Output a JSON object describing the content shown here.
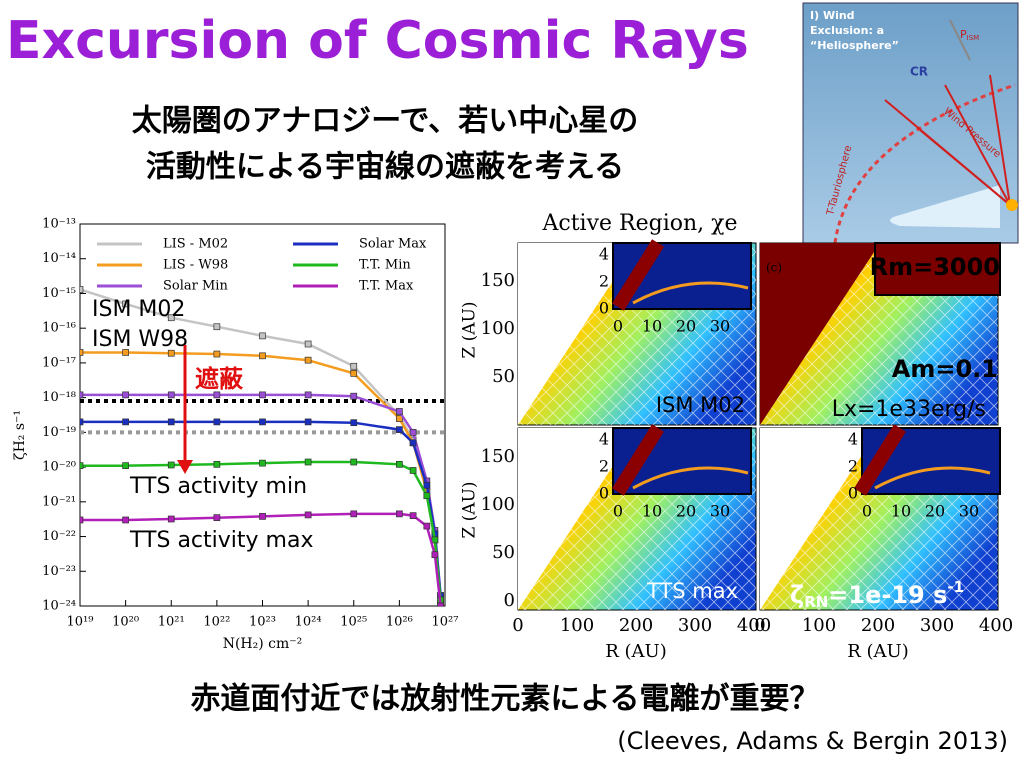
{
  "title": "Excursion of Cosmic Rays",
  "subtitle": [
    "太陽圏のアナロジーで、若い中心星の",
    "活動性による宇宙線の遮蔽を考える"
  ],
  "chart_data": {
    "type": "line",
    "xlabel": "N(H₂) cm⁻²",
    "ylabel": "ζH₂ s⁻¹",
    "log_x": true,
    "log_y": true,
    "xlim": [
      1e+19,
      1e+27
    ],
    "ylim": [
      1e-24,
      1e-13
    ],
    "xticks": [
      {
        "value": 1e+19,
        "label": "10¹⁹"
      },
      {
        "value": 1e+20,
        "label": "10²⁰"
      },
      {
        "value": 1e+21,
        "label": "10²¹"
      },
      {
        "value": 1e+22,
        "label": "10²²"
      },
      {
        "value": 1e+23,
        "label": "10²³"
      },
      {
        "value": 1e+24,
        "label": "10²⁴"
      },
      {
        "value": 1e+25,
        "label": "10²⁵"
      },
      {
        "value": 1e+26,
        "label": "10²⁶"
      },
      {
        "value": 1e+27,
        "label": "10²⁷"
      }
    ],
    "yticks": [
      {
        "value": 1e-13,
        "label": "10⁻¹³"
      },
      {
        "value": 1e-14,
        "label": "10⁻¹⁴"
      },
      {
        "value": 1e-15,
        "label": "10⁻¹⁵"
      },
      {
        "value": 1e-16,
        "label": "10⁻¹⁶"
      },
      {
        "value": 1e-17,
        "label": "10⁻¹⁷"
      },
      {
        "value": 1e-18,
        "label": "10⁻¹⁸"
      },
      {
        "value": 1e-19,
        "label": "10⁻¹⁹"
      },
      {
        "value": 1e-20,
        "label": "10⁻²⁰"
      },
      {
        "value": 1e-21,
        "label": "10⁻²¹"
      },
      {
        "value": 1e-22,
        "label": "10⁻²²"
      },
      {
        "value": 1e-23,
        "label": "10⁻²³"
      },
      {
        "value": 1e-24,
        "label": "10⁻²⁴"
      }
    ],
    "x": [
      1e+19,
      1e+20,
      1e+21,
      1e+22,
      1e+23,
      1e+24,
      1e+25,
      1e+26,
      2e+26,
      4e+26,
      6e+26,
      8e+26
    ],
    "markers": true,
    "legend": true,
    "series": [
      {
        "name": "LIS - M02",
        "color": "#c4c4c4",
        "values": [
          1.3e-15,
          5e-16,
          2e-16,
          1.1e-16,
          6e-17,
          3.5e-17,
          8e-18,
          3e-19,
          6e-20,
          2.5e-21,
          1e-22,
          1.2e-24
        ]
      },
      {
        "name": "LIS - W98",
        "color": "#f39c1f",
        "values": [
          2e-17,
          2e-17,
          1.9e-17,
          1.8e-17,
          1.6e-17,
          1.2e-17,
          5e-18,
          2.5e-19,
          5e-20,
          2e-21,
          8e-23,
          1e-24
        ]
      },
      {
        "name": "Solar Min",
        "color": "#9b4fd6",
        "values": [
          1.2e-18,
          1.2e-18,
          1.2e-18,
          1.2e-18,
          1.2e-18,
          1.2e-18,
          1.1e-18,
          4e-19,
          1e-19,
          4e-21,
          1.5e-22,
          2e-24
        ]
      },
      {
        "name": "Solar Max",
        "color": "#1a2fc0",
        "values": [
          2e-19,
          2e-19,
          2e-19,
          2e-19,
          2e-19,
          2e-19,
          1.9e-19,
          1.2e-19,
          5e-20,
          3e-21,
          1.2e-22,
          2e-24
        ]
      },
      {
        "name": "T.T. Min",
        "color": "#1fb81f",
        "values": [
          1.1e-20,
          1.1e-20,
          1.15e-20,
          1.2e-20,
          1.3e-20,
          1.4e-20,
          1.4e-20,
          1.2e-20,
          8e-21,
          1.5e-21,
          8e-23,
          1.5e-24
        ]
      },
      {
        "name": "T.T. Max",
        "color": "#b01fb8",
        "values": [
          3e-22,
          3e-22,
          3.2e-22,
          3.5e-22,
          3.8e-22,
          4.2e-22,
          4.5e-22,
          4.5e-22,
          4e-22,
          2e-22,
          3e-23,
          1e-24
        ]
      }
    ],
    "reference_lines": [
      {
        "value": 8e-19,
        "color": "#000000"
      },
      {
        "value": 1e-19,
        "color": "#999999"
      }
    ],
    "annotations": [
      "ISM M02",
      "ISM W98",
      "遮蔽",
      "TTS activity min",
      "TTS activity max"
    ]
  },
  "model_panels": {
    "title": "Active Region, χe",
    "z_label": "Z (AU)",
    "r_label": "R (AU)",
    "z_ticks": [
      150,
      100,
      50,
      0
    ],
    "r_ticks": [
      0,
      100,
      200,
      300,
      400
    ],
    "inset_z_ticks": [
      4,
      2,
      0
    ],
    "inset_r_ticks": [
      0,
      10,
      20,
      30
    ],
    "labels": [
      "ISM M02",
      "TTS max",
      "(c)"
    ],
    "params": [
      "Rm=3000",
      "Am=0.1",
      "Lx=1e33erg/s"
    ],
    "zeta": {
      "symbol": "ζ",
      "sub": "RN",
      "main": "=1e-19 s",
      "sup": "-1"
    }
  },
  "wind_diagram": {
    "heading": [
      "I) Wind",
      "Exclusion: a",
      "“Heliosphere”"
    ],
    "p": "P",
    "p_sub": "ISM",
    "cr": "CR",
    "wind": "Wind Pressure",
    "sphere": "T-Tauriosphere"
  },
  "conclusion": "赤道面付近では放射性元素による電離が重要？",
  "citation": "(Cleeves, Adams & Bergin 2013)"
}
